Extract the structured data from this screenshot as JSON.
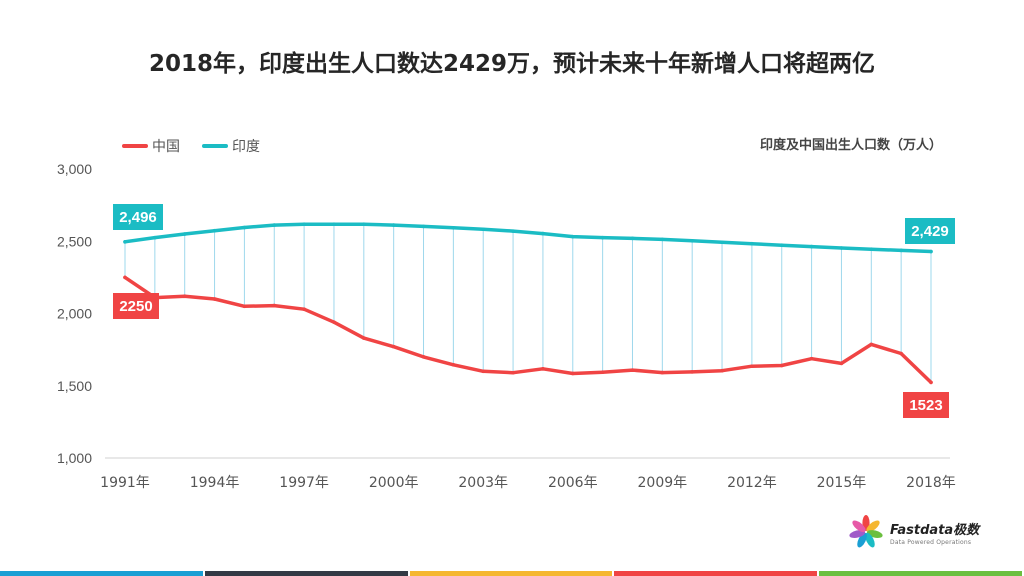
{
  "title": "2018年，印度出生人口数达2429万，预计未来十年新增人口将超两亿",
  "unit_label": "印度及中国出生人口数（万人）",
  "logo": {
    "name": "Fastdata极数",
    "tagline": "Data Powered Operations"
  },
  "colors": {
    "china": "#f04444",
    "india": "#1bbcc4",
    "connector": "#9ed8ec",
    "bottom_bar": [
      "#1a9fd4",
      "#333a45",
      "#f5b731",
      "#f04444",
      "#6bbf3f"
    ]
  },
  "chart_data": {
    "type": "line",
    "title": "2018年，印度出生人口数达2429万，预计未来十年新增人口将超两亿",
    "ylabel": "印度及中国出生人口数（万人）",
    "ylim": [
      1000,
      3000
    ],
    "yticks": [
      "1,000",
      "1,500",
      "2,000",
      "2,500",
      "3,000"
    ],
    "x": [
      1991,
      1992,
      1993,
      1994,
      1995,
      1996,
      1997,
      1998,
      1999,
      2000,
      2001,
      2002,
      2003,
      2004,
      2005,
      2006,
      2007,
      2008,
      2009,
      2010,
      2011,
      2012,
      2013,
      2014,
      2015,
      2016,
      2017,
      2018
    ],
    "xtick_labels": [
      "1991年",
      "1994年",
      "1997年",
      "2000年",
      "2003年",
      "2006年",
      "2009年",
      "2012年",
      "2015年",
      "2018年"
    ],
    "series": [
      {
        "name": "中国",
        "values": [
          2250,
          2110,
          2120,
          2100,
          2050,
          2055,
          2030,
          1940,
          1830,
          1770,
          1700,
          1645,
          1600,
          1590,
          1617,
          1585,
          1594,
          1608,
          1591,
          1596,
          1604,
          1635,
          1640,
          1687,
          1655,
          1786,
          1723,
          1523
        ]
      },
      {
        "name": "印度",
        "values": [
          2496,
          2525,
          2550,
          2573,
          2595,
          2612,
          2618,
          2618,
          2618,
          2612,
          2603,
          2593,
          2583,
          2570,
          2553,
          2532,
          2525,
          2520,
          2513,
          2503,
          2493,
          2483,
          2473,
          2463,
          2453,
          2445,
          2437,
          2429
        ]
      }
    ],
    "data_labels": {
      "india_start": "2,496",
      "india_end": "2,429",
      "china_start": "2250",
      "china_end": "1523"
    },
    "legend": "top-left",
    "grid": false
  }
}
